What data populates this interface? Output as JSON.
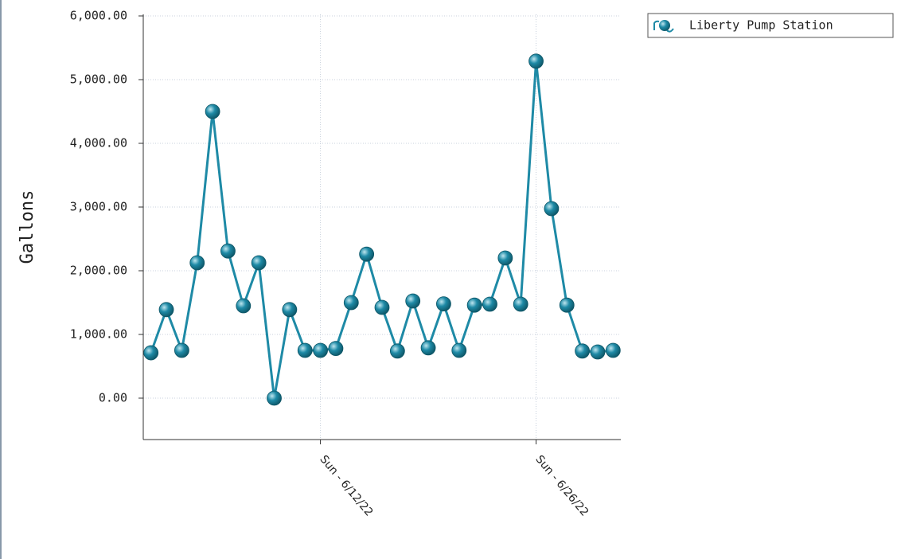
{
  "chart_data": {
    "type": "line",
    "y_label": "Gallons",
    "x": [
      "6/1/22",
      "6/2/22",
      "6/3/22",
      "6/4/22",
      "6/5/22",
      "6/6/22",
      "6/7/22",
      "6/8/22",
      "6/9/22",
      "6/10/22",
      "6/11/22",
      "6/12/22",
      "6/13/22",
      "6/14/22",
      "6/15/22",
      "6/16/22",
      "6/17/22",
      "6/18/22",
      "6/19/22",
      "6/20/22",
      "6/21/22",
      "6/22/22",
      "6/23/22",
      "6/24/22",
      "6/25/22",
      "6/26/22",
      "6/27/22",
      "6/28/22",
      "6/29/22",
      "6/30/22",
      "7/1/22"
    ],
    "xticks": [
      {
        "value": "6/12/22",
        "label": "Sun - 6/12/22"
      },
      {
        "value": "6/26/22",
        "label": "Sun - 6/26/22"
      }
    ],
    "series": [
      {
        "name": "Liberty Pump Station",
        "color": "#1e8aa6",
        "values": [
          712,
          1390,
          750,
          2125,
          4500,
          2310,
          1450,
          2125,
          0,
          1390,
          750,
          750,
          780,
          1500,
          2260,
          1425,
          740,
          1525,
          790,
          1480,
          750,
          1460,
          1475,
          2200,
          1475,
          5290,
          2975,
          1460,
          740,
          725,
          750
        ]
      }
    ],
    "ylim": [
      -650,
      6025
    ],
    "yticks": [
      {
        "value": 0,
        "label": "0.00"
      },
      {
        "value": 1000,
        "label": "1,000.00"
      },
      {
        "value": 2000,
        "label": "2,000.00"
      },
      {
        "value": 3000,
        "label": "3,000.00"
      },
      {
        "value": 4000,
        "label": "4,000.00"
      },
      {
        "value": 5000,
        "label": "5,000.00"
      },
      {
        "value": 6000,
        "label": "6,000.00"
      }
    ],
    "grid": true,
    "legend": "top-right"
  }
}
